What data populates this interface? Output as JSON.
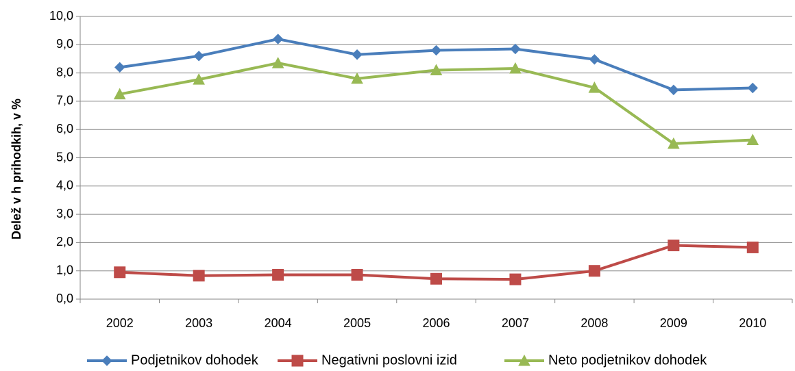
{
  "chart_data": {
    "type": "line",
    "title": "",
    "xlabel": "",
    "ylabel": "Delež v h prihodkih, v %",
    "ylim": [
      0,
      10
    ],
    "ytick_step": 1,
    "y_tick_labels": [
      "0,0",
      "1,0",
      "2,0",
      "3,0",
      "4,0",
      "5,0",
      "6,0",
      "7,0",
      "8,0",
      "9,0",
      "10,0"
    ],
    "categories": [
      "2002",
      "2003",
      "2004",
      "2005",
      "2006",
      "2007",
      "2008",
      "2009",
      "2010"
    ],
    "grid": true,
    "legend_position": "bottom",
    "series": [
      {
        "name": "Podjetnikov dohodek",
        "color": "#4A7EBB",
        "marker": "diamond",
        "values": [
          8.2,
          8.6,
          9.2,
          8.65,
          8.8,
          8.85,
          8.48,
          7.4,
          7.47
        ]
      },
      {
        "name": "Negativni poslovni izid",
        "color": "#BE4B48",
        "marker": "square",
        "values": [
          0.95,
          0.83,
          0.86,
          0.86,
          0.72,
          0.7,
          1.0,
          1.9,
          1.83
        ]
      },
      {
        "name": "Neto podjetnikov dohodek",
        "color": "#98B954",
        "marker": "triangle",
        "values": [
          7.25,
          7.77,
          8.35,
          7.8,
          8.1,
          8.16,
          7.48,
          5.5,
          5.63
        ]
      }
    ]
  }
}
